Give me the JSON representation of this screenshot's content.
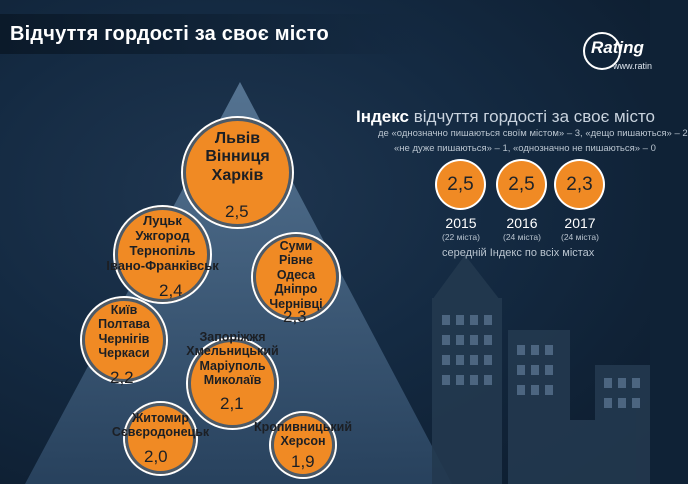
{
  "title": "Відчуття гордості за своє місто",
  "logo": {
    "name": "Rating",
    "url": "www.ratin"
  },
  "pyramid_groups": [
    {
      "cities": "Львів\nВінниця\nХарків",
      "value": "2,5"
    },
    {
      "cities": "Луцьк\nУжгород\nТернопіль\nІвано-Франківськ",
      "value": "2,4"
    },
    {
      "cities": "Суми\nРівне\nОдеса\nДніпро\nЧернівці",
      "value": "2,3"
    },
    {
      "cities": "Київ\nПолтава\nЧернігів\nЧеркаси",
      "value": "2,2"
    },
    {
      "cities": "Запоріжжя\nХмельницький\nМаріуполь\nМиколаїв",
      "value": "2,1"
    },
    {
      "cities": "Житомир\nСєвєродонецьк",
      "value": "2,0"
    },
    {
      "cities": "Кропивницький\nХерсон",
      "value": "1,9"
    }
  ],
  "index": {
    "title_bold": "Індекс",
    "title_rest": "відчуття гордості за своє місто",
    "scale_line1": "де «однозначно пишаються своїм містом» – 3, «дещо пишаються» – 2",
    "scale_line2": "«не дуже пишаються» – 1, «однозначно не пишаються» – 0",
    "years": [
      {
        "value": "2,5",
        "year": "2015",
        "note": "(22 міста)"
      },
      {
        "value": "2,5",
        "year": "2016",
        "note": "(24 міста)"
      },
      {
        "value": "2,3",
        "year": "2017",
        "note": "(24 міста)"
      }
    ],
    "average_label": "середній Індекс по всіх містах"
  },
  "colors": {
    "accent": "#f08a24",
    "background": "#142a42",
    "text": "#ffffff"
  }
}
